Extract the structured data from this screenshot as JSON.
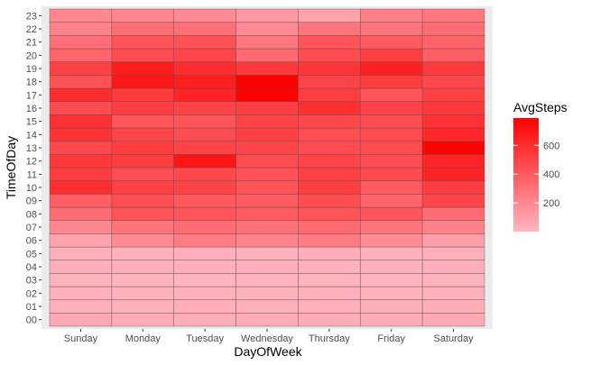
{
  "chart_data": {
    "type": "heatmap",
    "title": "",
    "xlabel": "DayOfWeek",
    "ylabel": "TimeOfDay",
    "x_categories": [
      "Sunday",
      "Monday",
      "Tuesday",
      "Wednesday",
      "Thursday",
      "Friday",
      "Saturday"
    ],
    "y_categories": [
      "00",
      "01",
      "02",
      "03",
      "04",
      "05",
      "06",
      "07",
      "08",
      "09",
      "10",
      "11",
      "12",
      "13",
      "14",
      "15",
      "16",
      "17",
      "18",
      "19",
      "20",
      "21",
      "22",
      "23"
    ],
    "values": [
      [
        60,
        45,
        40,
        45,
        35,
        40,
        55
      ],
      [
        30,
        30,
        35,
        30,
        30,
        25,
        35
      ],
      [
        25,
        20,
        25,
        20,
        25,
        20,
        25
      ],
      [
        15,
        15,
        10,
        10,
        15,
        10,
        15
      ],
      [
        30,
        25,
        30,
        30,
        20,
        20,
        25
      ],
      [
        30,
        20,
        30,
        25,
        35,
        20,
        30
      ],
      [
        80,
        190,
        250,
        220,
        250,
        180,
        100
      ],
      [
        200,
        290,
        320,
        300,
        330,
        290,
        230
      ],
      [
        320,
        430,
        420,
        390,
        430,
        420,
        320
      ],
      [
        380,
        450,
        410,
        400,
        460,
        350,
        490
      ],
      [
        590,
        510,
        500,
        430,
        520,
        400,
        530
      ],
      [
        530,
        450,
        480,
        440,
        510,
        470,
        640
      ],
      [
        550,
        530,
        700,
        460,
        500,
        460,
        640
      ],
      [
        480,
        530,
        500,
        490,
        460,
        460,
        780
      ],
      [
        570,
        490,
        460,
        510,
        450,
        460,
        620
      ],
      [
        580,
        420,
        420,
        500,
        480,
        450,
        580
      ],
      [
        460,
        520,
        500,
        520,
        590,
        500,
        550
      ],
      [
        600,
        540,
        640,
        780,
        520,
        420,
        510
      ],
      [
        440,
        690,
        660,
        790,
        500,
        530,
        480
      ],
      [
        510,
        670,
        600,
        550,
        560,
        650,
        540
      ],
      [
        350,
        460,
        490,
        330,
        460,
        520,
        380
      ],
      [
        310,
        420,
        440,
        270,
        420,
        400,
        360
      ],
      [
        230,
        310,
        310,
        190,
        280,
        290,
        320
      ],
      [
        200,
        210,
        190,
        130,
        90,
        240,
        270
      ]
    ],
    "legend": {
      "title": "AvgSteps",
      "ticks": [
        200,
        400,
        600
      ],
      "min": 0,
      "max": 790,
      "low_color": "#ffb6c1",
      "high_color": "#ff0000",
      "position": "right"
    },
    "panel_background": "#ebebeb",
    "tile_border_color": "#4d4d4d"
  }
}
